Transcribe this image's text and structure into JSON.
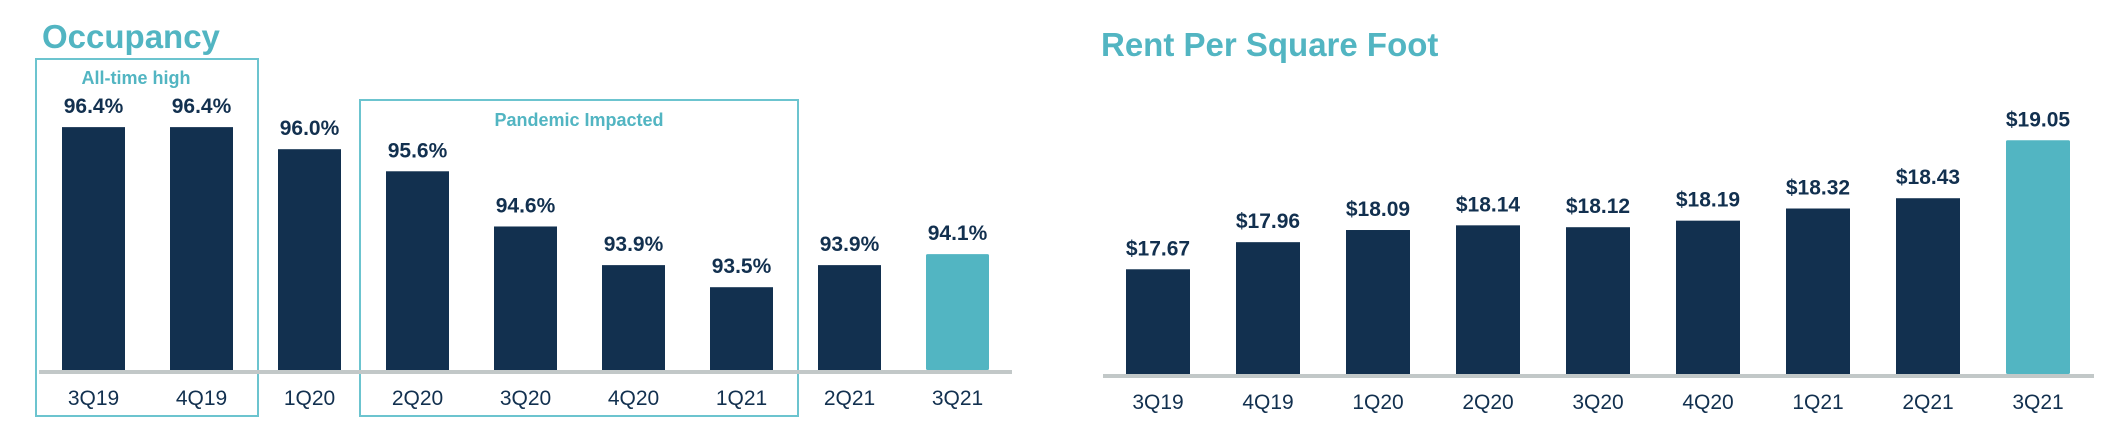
{
  "colors": {
    "title": "#52b5c2",
    "bar": "#12304f",
    "highlight": "#52b5c2",
    "baseline": "#c2c8c8",
    "annotation_box": "#6cc4cf",
    "label": "#12304f"
  },
  "chart_data": [
    {
      "type": "bar",
      "title": "Occupancy",
      "xlabel": "",
      "ylabel": "",
      "ylim": [
        92.0,
        97.0
      ],
      "grid": false,
      "categories": [
        "3Q19",
        "4Q19",
        "1Q20",
        "2Q20",
        "3Q20",
        "4Q20",
        "1Q21",
        "2Q21",
        "3Q21"
      ],
      "values": [
        96.4,
        96.4,
        96.0,
        95.6,
        94.6,
        93.9,
        93.5,
        93.9,
        94.1
      ],
      "value_labels": [
        "96.4%",
        "96.4%",
        "96.0%",
        "95.6%",
        "94.6%",
        "93.9%",
        "93.5%",
        "93.9%",
        "94.1%"
      ],
      "highlight_index": 8,
      "annotations": [
        {
          "label": "All-time high",
          "from_category": "3Q19",
          "to_category": "4Q19"
        },
        {
          "label": "Pandemic Impacted",
          "from_category": "2Q20",
          "to_category": "1Q21"
        }
      ]
    },
    {
      "type": "bar",
      "title": "Rent Per Square Foot",
      "xlabel": "",
      "ylabel": "",
      "ylim": [
        16.55,
        19.5
      ],
      "grid": false,
      "categories": [
        "3Q19",
        "4Q19",
        "1Q20",
        "2Q20",
        "3Q20",
        "4Q20",
        "1Q21",
        "2Q21",
        "3Q21"
      ],
      "values": [
        17.67,
        17.96,
        18.09,
        18.14,
        18.12,
        18.19,
        18.32,
        18.43,
        19.05
      ],
      "value_labels": [
        "$17.67",
        "$17.96",
        "$18.09",
        "$18.14",
        "$18.12",
        "$18.19",
        "$18.32",
        "$18.43",
        "$19.05"
      ],
      "highlight_index": 8,
      "annotations": []
    }
  ]
}
